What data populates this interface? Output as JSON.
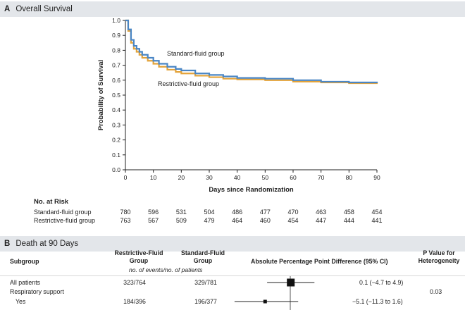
{
  "panelA": {
    "letter": "A",
    "title": "Overall Survival"
  },
  "chart_data": {
    "type": "line",
    "title": "Overall Survival",
    "xlabel": "Days since Randomization",
    "ylabel": "Probability of Survival",
    "xlim": [
      0,
      90
    ],
    "ylim": [
      0,
      1.0
    ],
    "xticks": [
      0,
      10,
      20,
      30,
      40,
      50,
      60,
      70,
      80,
      90
    ],
    "yticks": [
      0.0,
      0.1,
      0.2,
      0.3,
      0.4,
      0.5,
      0.6,
      0.7,
      0.8,
      0.9,
      1.0
    ],
    "series": [
      {
        "name": "Standard-fluid group",
        "color": "#4a86c5",
        "x": [
          0,
          1,
          2,
          3,
          4,
          5,
          6,
          8,
          10,
          12,
          15,
          18,
          20,
          25,
          30,
          35,
          40,
          50,
          60,
          70,
          80,
          90
        ],
        "y": [
          1.0,
          0.94,
          0.87,
          0.83,
          0.81,
          0.79,
          0.77,
          0.75,
          0.73,
          0.71,
          0.69,
          0.675,
          0.665,
          0.645,
          0.635,
          0.625,
          0.615,
          0.61,
          0.6,
          0.59,
          0.585,
          0.58
        ]
      },
      {
        "name": "Restrictive-fluid group",
        "color": "#e3a33a",
        "x": [
          0,
          1,
          2,
          3,
          4,
          5,
          6,
          8,
          10,
          12,
          15,
          18,
          20,
          25,
          30,
          35,
          40,
          50,
          60,
          70,
          80,
          90
        ],
        "y": [
          1.0,
          0.93,
          0.85,
          0.81,
          0.79,
          0.77,
          0.75,
          0.73,
          0.71,
          0.69,
          0.67,
          0.655,
          0.645,
          0.63,
          0.62,
          0.61,
          0.605,
          0.6,
          0.59,
          0.585,
          0.58,
          0.575
        ]
      }
    ],
    "annotations": [
      "Standard-fluid group",
      "Restrictive-fluid group"
    ]
  },
  "risk": {
    "title": "No. at Risk",
    "rows": [
      {
        "label": "Standard-fluid group",
        "values": [
          "780",
          "596",
          "531",
          "504",
          "486",
          "477",
          "470",
          "463",
          "458",
          "454"
        ]
      },
      {
        "label": "Restrictive-fluid group",
        "values": [
          "763",
          "567",
          "509",
          "479",
          "464",
          "460",
          "454",
          "447",
          "444",
          "441"
        ]
      }
    ]
  },
  "panelB": {
    "letter": "B",
    "title": "Death at 90 Days",
    "headers": {
      "subgroup": "Subgroup",
      "restrictive_1": "Restrictive-Fluid",
      "restrictive_2": "Group",
      "standard_1": "Standard-Fluid",
      "standard_2": "Group",
      "events_note": "no. of events/no. of patients",
      "difference": "Absolute Percentage Point Difference (95% CI)",
      "pvalue_1": "P Value for",
      "pvalue_2": "Heterogeneity"
    },
    "rows": [
      {
        "name": "All patients",
        "restrictive": "323/764",
        "standard": "329/781",
        "diff": "0.1 (−4.7 to 4.9)",
        "p": "",
        "est": 0.1,
        "lo": -4.7,
        "hi": 4.9,
        "indent": false
      },
      {
        "name": "Respiratory support",
        "restrictive": "",
        "standard": "",
        "diff": "",
        "p": "0.03",
        "indent": false
      },
      {
        "name": "Yes",
        "restrictive": "184/396",
        "standard": "196/377",
        "diff": "−5.1 (−11.3 to 1.6)",
        "p": "",
        "est": -5.1,
        "lo": -11.3,
        "hi": 1.6,
        "indent": true
      }
    ]
  }
}
